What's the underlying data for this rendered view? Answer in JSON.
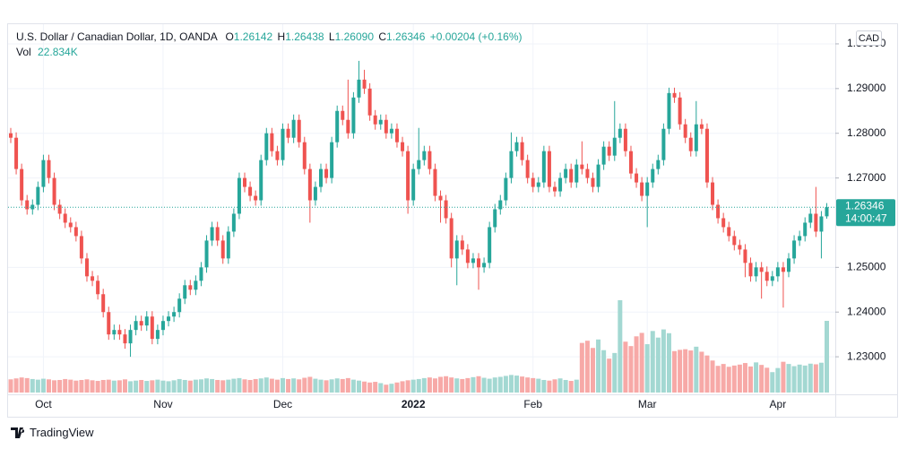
{
  "header": {
    "title": "U.S. Dollar / Canadian Dollar, 1D, OANDA",
    "ohlc": [
      {
        "label": "O",
        "value": "1.26142"
      },
      {
        "label": "H",
        "value": "1.26438"
      },
      {
        "label": "L",
        "value": "1.26090"
      },
      {
        "label": "C",
        "value": "1.26346"
      }
    ],
    "change": "+0.00204 (+0.16%)",
    "vol_label": "Vol",
    "vol_value": "22.834K"
  },
  "currency": "CAD",
  "countdown": "14:00:47",
  "brand": "TradingView",
  "chart_data": {
    "type": "candlestick",
    "up_color": "#26a69a",
    "down_color": "#ef5350",
    "volume_up_color": "#a3d8d2",
    "volume_down_color": "#f7a9a7",
    "grid": true,
    "ylim": [
      1.222,
      1.3042
    ],
    "yticks": [
      {
        "value": 1.23,
        "label": "1.23000"
      },
      {
        "value": 1.24,
        "label": "1.24000"
      },
      {
        "value": 1.25,
        "label": "1.25000"
      },
      {
        "value": 1.27,
        "label": "1.27000"
      },
      {
        "value": 1.28,
        "label": "1.28000"
      },
      {
        "value": 1.29,
        "label": "1.29000"
      },
      {
        "value": 1.3,
        "label": "1.30000"
      }
    ],
    "xticks": [
      {
        "value": 6,
        "label": "Oct"
      },
      {
        "value": 28,
        "label": "Nov"
      },
      {
        "value": 50,
        "label": "Dec"
      },
      {
        "value": 74,
        "label": "2022"
      },
      {
        "value": 96,
        "label": "Feb"
      },
      {
        "value": 117,
        "label": "Mar"
      },
      {
        "value": 141,
        "label": "Apr"
      }
    ],
    "open": [
      1.28,
      1.279,
      1.272,
      1.265,
      1.263,
      1.264,
      1.268,
      1.274,
      1.27,
      1.264,
      1.262,
      1.26,
      1.259,
      1.257,
      1.252,
      1.248,
      1.247,
      1.244,
      1.24,
      1.235,
      1.236,
      1.235,
      1.233,
      1.236,
      1.238,
      1.237,
      1.239,
      1.234,
      1.236,
      1.238,
      1.239,
      1.24,
      1.243,
      1.246,
      1.245,
      1.247,
      1.25,
      1.256,
      1.259,
      1.256,
      1.252,
      1.258,
      1.262,
      1.27,
      1.268,
      1.266,
      1.265,
      1.274,
      1.28,
      1.276,
      1.274,
      1.281,
      1.279,
      1.283,
      1.278,
      1.272,
      1.265,
      1.268,
      1.272,
      1.27,
      1.278,
      1.285,
      1.283,
      1.28,
      1.288,
      1.292,
      1.29,
      1.284,
      1.282,
      1.283,
      1.28,
      1.281,
      1.278,
      1.276,
      1.265,
      1.272,
      1.274,
      1.276,
      1.272,
      1.266,
      1.265,
      1.261,
      1.252,
      1.256,
      1.254,
      1.251,
      1.252,
      1.25,
      1.251,
      1.259,
      1.263,
      1.265,
      1.27,
      1.276,
      1.278,
      1.274,
      1.27,
      1.268,
      1.269,
      1.276,
      1.268,
      1.267,
      1.27,
      1.272,
      1.269,
      1.273,
      1.272,
      1.27,
      1.268,
      1.273,
      1.277,
      1.275,
      1.279,
      1.281,
      1.276,
      1.271,
      1.269,
      1.266,
      1.269,
      1.272,
      1.274,
      1.281,
      1.289,
      1.288,
      1.282,
      1.279,
      1.276,
      1.282,
      1.281,
      1.269,
      1.264,
      1.261,
      1.259,
      1.257,
      1.255,
      1.254,
      1.251,
      1.248,
      1.25,
      1.249,
      1.247,
      1.248,
      1.25,
      1.249,
      1.252,
      1.256,
      1.257,
      1.26,
      1.262,
      1.258,
      1.26142
    ],
    "high": [
      1.2812,
      1.2802,
      1.2732,
      1.2662,
      1.2652,
      1.2692,
      1.2752,
      1.2752,
      1.2712,
      1.2652,
      1.2632,
      1.2612,
      1.2602,
      1.2582,
      1.2532,
      1.2492,
      1.2482,
      1.2452,
      1.2412,
      1.2372,
      1.2372,
      1.2362,
      1.2372,
      1.2392,
      1.2392,
      1.2402,
      1.2402,
      1.2372,
      1.2392,
      1.2402,
      1.2412,
      1.2442,
      1.2472,
      1.2472,
      1.2482,
      1.2512,
      1.2572,
      1.2602,
      1.2602,
      1.2572,
      1.2592,
      1.2632,
      1.2712,
      1.2712,
      1.2692,
      1.2672,
      1.2752,
      1.2812,
      1.2812,
      1.2772,
      1.2822,
      1.2822,
      1.2842,
      1.2842,
      1.2792,
      1.2732,
      1.2692,
      1.2732,
      1.2732,
      1.2792,
      1.2862,
      1.2862,
      1.292,
      1.2892,
      1.2962,
      1.2942,
      1.2912,
      1.2852,
      1.2842,
      1.2842,
      1.2822,
      1.2822,
      1.2792,
      1.2772,
      1.2732,
      1.2812,
      1.2772,
      1.2772,
      1.2732,
      1.2672,
      1.2662,
      1.2622,
      1.2572,
      1.2572,
      1.2552,
      1.2532,
      1.2532,
      1.2522,
      1.2602,
      1.2642,
      1.2662,
      1.2712,
      1.2802,
      1.2792,
      1.2792,
      1.2752,
      1.2712,
      1.2702,
      1.2772,
      1.2772,
      1.2692,
      1.2712,
      1.2732,
      1.2732,
      1.2742,
      1.2782,
      1.2732,
      1.2712,
      1.2742,
      1.2782,
      1.2782,
      1.2872,
      1.2822,
      1.2822,
      1.2772,
      1.2722,
      1.2702,
      1.2702,
      1.2732,
      1.2752,
      1.2822,
      1.2902,
      1.2902,
      1.2892,
      1.2832,
      1.2802,
      1.2872,
      1.2832,
      1.2822,
      1.2702,
      1.2652,
      1.2622,
      1.2602,
      1.2582,
      1.2562,
      1.2552,
      1.2522,
      1.2512,
      1.2512,
      1.2502,
      1.2492,
      1.2512,
      1.2512,
      1.2532,
      1.2572,
      1.2582,
      1.2612,
      1.2632,
      1.268,
      1.2626,
      1.26438
    ],
    "low": [
      1.2778,
      1.2708,
      1.2638,
      1.2618,
      1.2618,
      1.2628,
      1.2668,
      1.2688,
      1.2628,
      1.2608,
      1.2588,
      1.2578,
      1.2558,
      1.2508,
      1.2468,
      1.2458,
      1.2428,
      1.2388,
      1.2338,
      1.2338,
      1.2338,
      1.2318,
      1.23,
      1.2348,
      1.2358,
      1.2358,
      1.2328,
      1.2328,
      1.2348,
      1.2368,
      1.2378,
      1.2388,
      1.2418,
      1.2438,
      1.2438,
      1.2458,
      1.2488,
      1.2548,
      1.2548,
      1.2508,
      1.2508,
      1.2568,
      1.2608,
      1.2668,
      1.2648,
      1.2638,
      1.2638,
      1.2728,
      1.2748,
      1.2728,
      1.2728,
      1.2778,
      1.2778,
      1.2768,
      1.2708,
      1.26,
      1.2638,
      1.2668,
      1.2688,
      1.2688,
      1.2768,
      1.2818,
      1.2788,
      1.2788,
      1.2868,
      1.2888,
      1.2828,
      1.2808,
      1.2808,
      1.2788,
      1.2788,
      1.2768,
      1.2748,
      1.262,
      1.2638,
      1.2708,
      1.2728,
      1.2708,
      1.2648,
      1.26,
      1.2598,
      1.25,
      1.246,
      1.2528,
      1.2498,
      1.2498,
      1.245,
      1.2488,
      1.2498,
      1.2578,
      1.2618,
      1.2638,
      1.2688,
      1.2748,
      1.2728,
      1.2688,
      1.2668,
      1.2668,
      1.2678,
      1.2668,
      1.2658,
      1.2658,
      1.2688,
      1.2678,
      1.2678,
      1.2708,
      1.2688,
      1.2668,
      1.2668,
      1.2718,
      1.2738,
      1.2738,
      1.2778,
      1.2748,
      1.2698,
      1.2678,
      1.2648,
      1.259,
      1.2678,
      1.2708,
      1.2728,
      1.2798,
      1.2868,
      1.2808,
      1.2778,
      1.2748,
      1.2748,
      1.2798,
      1.2678,
      1.2628,
      1.2598,
      1.2578,
      1.2558,
      1.2538,
      1.2528,
      1.2478,
      1.2468,
      1.2468,
      1.243,
      1.2458,
      1.2458,
      1.2468,
      1.241,
      1.2478,
      1.2508,
      1.2548,
      1.2558,
      1.2588,
      1.2568,
      1.252,
      1.2609
    ],
    "close": [
      1.279,
      1.272,
      1.265,
      1.263,
      1.264,
      1.268,
      1.274,
      1.27,
      1.264,
      1.262,
      1.26,
      1.259,
      1.257,
      1.252,
      1.248,
      1.247,
      1.244,
      1.24,
      1.235,
      1.236,
      1.235,
      1.233,
      1.236,
      1.238,
      1.237,
      1.239,
      1.234,
      1.236,
      1.238,
      1.239,
      1.24,
      1.243,
      1.246,
      1.245,
      1.247,
      1.25,
      1.256,
      1.259,
      1.256,
      1.252,
      1.258,
      1.262,
      1.27,
      1.268,
      1.266,
      1.265,
      1.274,
      1.28,
      1.276,
      1.274,
      1.281,
      1.279,
      1.283,
      1.278,
      1.272,
      1.265,
      1.268,
      1.272,
      1.27,
      1.278,
      1.285,
      1.283,
      1.28,
      1.288,
      1.292,
      1.29,
      1.284,
      1.282,
      1.283,
      1.28,
      1.281,
      1.278,
      1.276,
      1.265,
      1.272,
      1.274,
      1.276,
      1.272,
      1.266,
      1.265,
      1.261,
      1.252,
      1.256,
      1.254,
      1.251,
      1.252,
      1.25,
      1.251,
      1.259,
      1.263,
      1.265,
      1.27,
      1.276,
      1.278,
      1.274,
      1.27,
      1.268,
      1.269,
      1.276,
      1.268,
      1.267,
      1.27,
      1.272,
      1.269,
      1.273,
      1.272,
      1.27,
      1.268,
      1.273,
      1.277,
      1.275,
      1.279,
      1.281,
      1.276,
      1.271,
      1.269,
      1.266,
      1.269,
      1.272,
      1.274,
      1.281,
      1.289,
      1.288,
      1.282,
      1.279,
      1.276,
      1.282,
      1.281,
      1.269,
      1.264,
      1.261,
      1.259,
      1.257,
      1.255,
      1.254,
      1.251,
      1.248,
      1.25,
      1.249,
      1.247,
      1.248,
      1.25,
      1.249,
      1.252,
      1.256,
      1.257,
      1.26,
      1.262,
      1.258,
      1.2614,
      1.26346
    ],
    "volume": [
      4.2,
      4.5,
      4.8,
      4.6,
      4.3,
      4.1,
      4.4,
      4.2,
      3.9,
      4.0,
      4.3,
      4.1,
      3.8,
      4.0,
      4.2,
      3.9,
      3.7,
      4.0,
      4.1,
      3.8,
      3.9,
      4.2,
      3.6,
      3.8,
      4.0,
      3.7,
      3.9,
      4.1,
      3.8,
      3.6,
      3.9,
      4.3,
      4.0,
      3.8,
      4.1,
      4.2,
      4.5,
      4.3,
      4.0,
      3.9,
      4.1,
      4.4,
      4.6,
      4.2,
      4.0,
      4.3,
      4.5,
      4.8,
      4.4,
      4.1,
      4.6,
      4.3,
      4.5,
      4.2,
      4.7,
      5.0,
      4.4,
      4.1,
      3.9,
      4.2,
      4.5,
      4.3,
      4.6,
      4.1,
      3.8,
      3.5,
      3.2,
      3.4,
      3.0,
      2.5,
      2.8,
      3.2,
      3.6,
      3.9,
      4.1,
      4.3,
      4.6,
      4.8,
      4.5,
      5.0,
      5.2,
      4.8,
      4.5,
      4.3,
      4.6,
      4.9,
      5.2,
      4.7,
      4.4,
      4.8,
      5.0,
      5.3,
      5.6,
      5.4,
      5.1,
      4.8,
      4.6,
      4.4,
      4.0,
      3.8,
      4.2,
      4.5,
      4.0,
      3.7,
      4.1,
      15.8,
      16.5,
      14.2,
      16.9,
      13.5,
      10.8,
      12.6,
      29.4,
      16.2,
      14.8,
      17.9,
      19.0,
      15.4,
      19.6,
      17.5,
      20.1,
      18.9,
      13.2,
      13.6,
      13.8,
      13.4,
      14.6,
      13.0,
      11.8,
      10.2,
      8.5,
      9.1,
      8.2,
      8.6,
      8.9,
      9.4,
      8.3,
      9.6,
      8.8,
      7.9,
      6.5,
      7.8,
      9.8,
      9.1,
      8.4,
      8.9,
      8.6,
      9.2,
      9.0,
      9.5,
      22.834
    ]
  }
}
